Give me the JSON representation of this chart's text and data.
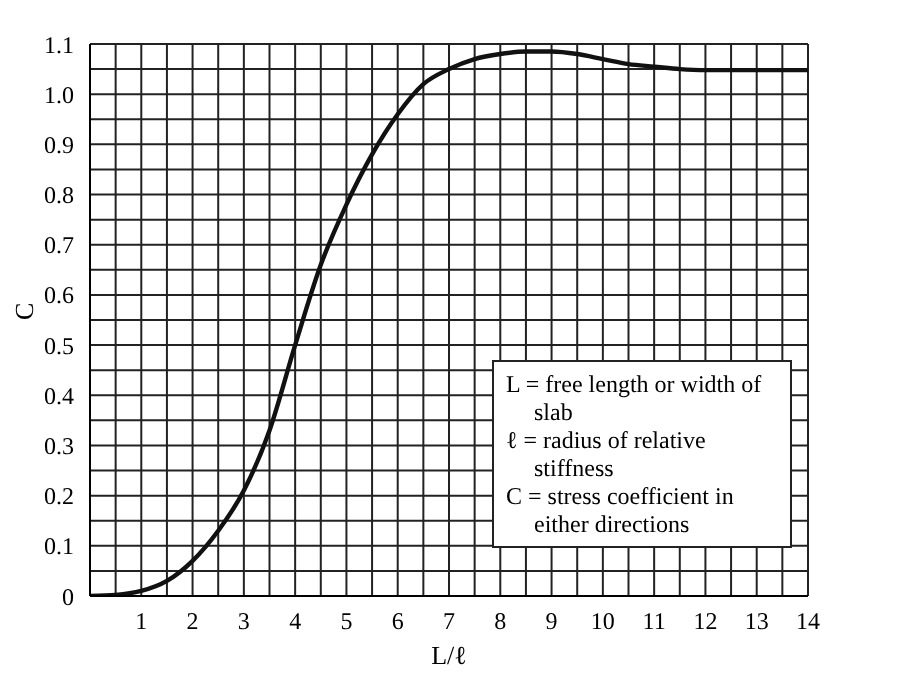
{
  "chart_data": {
    "type": "line",
    "xlabel": "L/ℓ",
    "ylabel": "C",
    "x": [
      0,
      0.5,
      1,
      1.5,
      2,
      2.5,
      3,
      3.5,
      4,
      4.5,
      5,
      5.5,
      6,
      6.5,
      7,
      7.5,
      8,
      8.5,
      9,
      9.5,
      10,
      10.5,
      11,
      11.5,
      12,
      12.5,
      13,
      13.5,
      14
    ],
    "series": [
      {
        "color": "#111111",
        "values": [
          0,
          0.002,
          0.01,
          0.03,
          0.07,
          0.13,
          0.21,
          0.33,
          0.5,
          0.66,
          0.78,
          0.88,
          0.96,
          1.02,
          1.05,
          1.07,
          1.08,
          1.085,
          1.085,
          1.08,
          1.07,
          1.06,
          1.055,
          1.05,
          1.048,
          1.048,
          1.048,
          1.048,
          1.048
        ]
      }
    ],
    "xlim": [
      0,
      14
    ],
    "ylim": [
      0,
      1.1
    ],
    "xticks": [
      {
        "value": 0,
        "label": null
      },
      {
        "value": 0.5,
        "label": null
      },
      1,
      {
        "value": 1.5,
        "label": null
      },
      2,
      {
        "value": 2.5,
        "label": null
      },
      3,
      {
        "value": 3.5,
        "label": null
      },
      4,
      {
        "value": 4.5,
        "label": null
      },
      5,
      {
        "value": 5.5,
        "label": null
      },
      6,
      {
        "value": 6.5,
        "label": null
      },
      7,
      {
        "value": 7.5,
        "label": null
      },
      8,
      {
        "value": 8.5,
        "label": null
      },
      9,
      {
        "value": 9.5,
        "label": null
      },
      10,
      {
        "value": 10.5,
        "label": null
      },
      11,
      {
        "value": 11.5,
        "label": null
      },
      12,
      {
        "value": 12.5,
        "label": null
      },
      13,
      {
        "value": 13.5,
        "label": null
      },
      14
    ],
    "yticks": [
      0,
      {
        "value": 0.05,
        "label": null
      },
      0.1,
      {
        "value": 0.15,
        "label": null
      },
      0.2,
      {
        "value": 0.25,
        "label": null
      },
      0.3,
      {
        "value": 0.35,
        "label": null
      },
      0.4,
      {
        "value": 0.45,
        "label": null
      },
      0.5,
      {
        "value": 0.55,
        "label": null
      },
      0.6,
      {
        "value": 0.65,
        "label": null
      },
      0.7,
      {
        "value": 0.75,
        "label": null
      },
      0.8,
      {
        "value": 0.85,
        "label": null
      },
      0.9,
      {
        "value": 0.95,
        "label": null
      },
      {
        "value": 1,
        "label": "1.0"
      },
      {
        "value": 1.05,
        "label": null
      },
      1.1
    ],
    "grid": true,
    "marker": "none",
    "line_style": "solid",
    "annotations": [
      "L = free length or width of slab",
      "ℓ = radius of relative stiffness",
      "C = stress coefficient in either directions"
    ]
  }
}
